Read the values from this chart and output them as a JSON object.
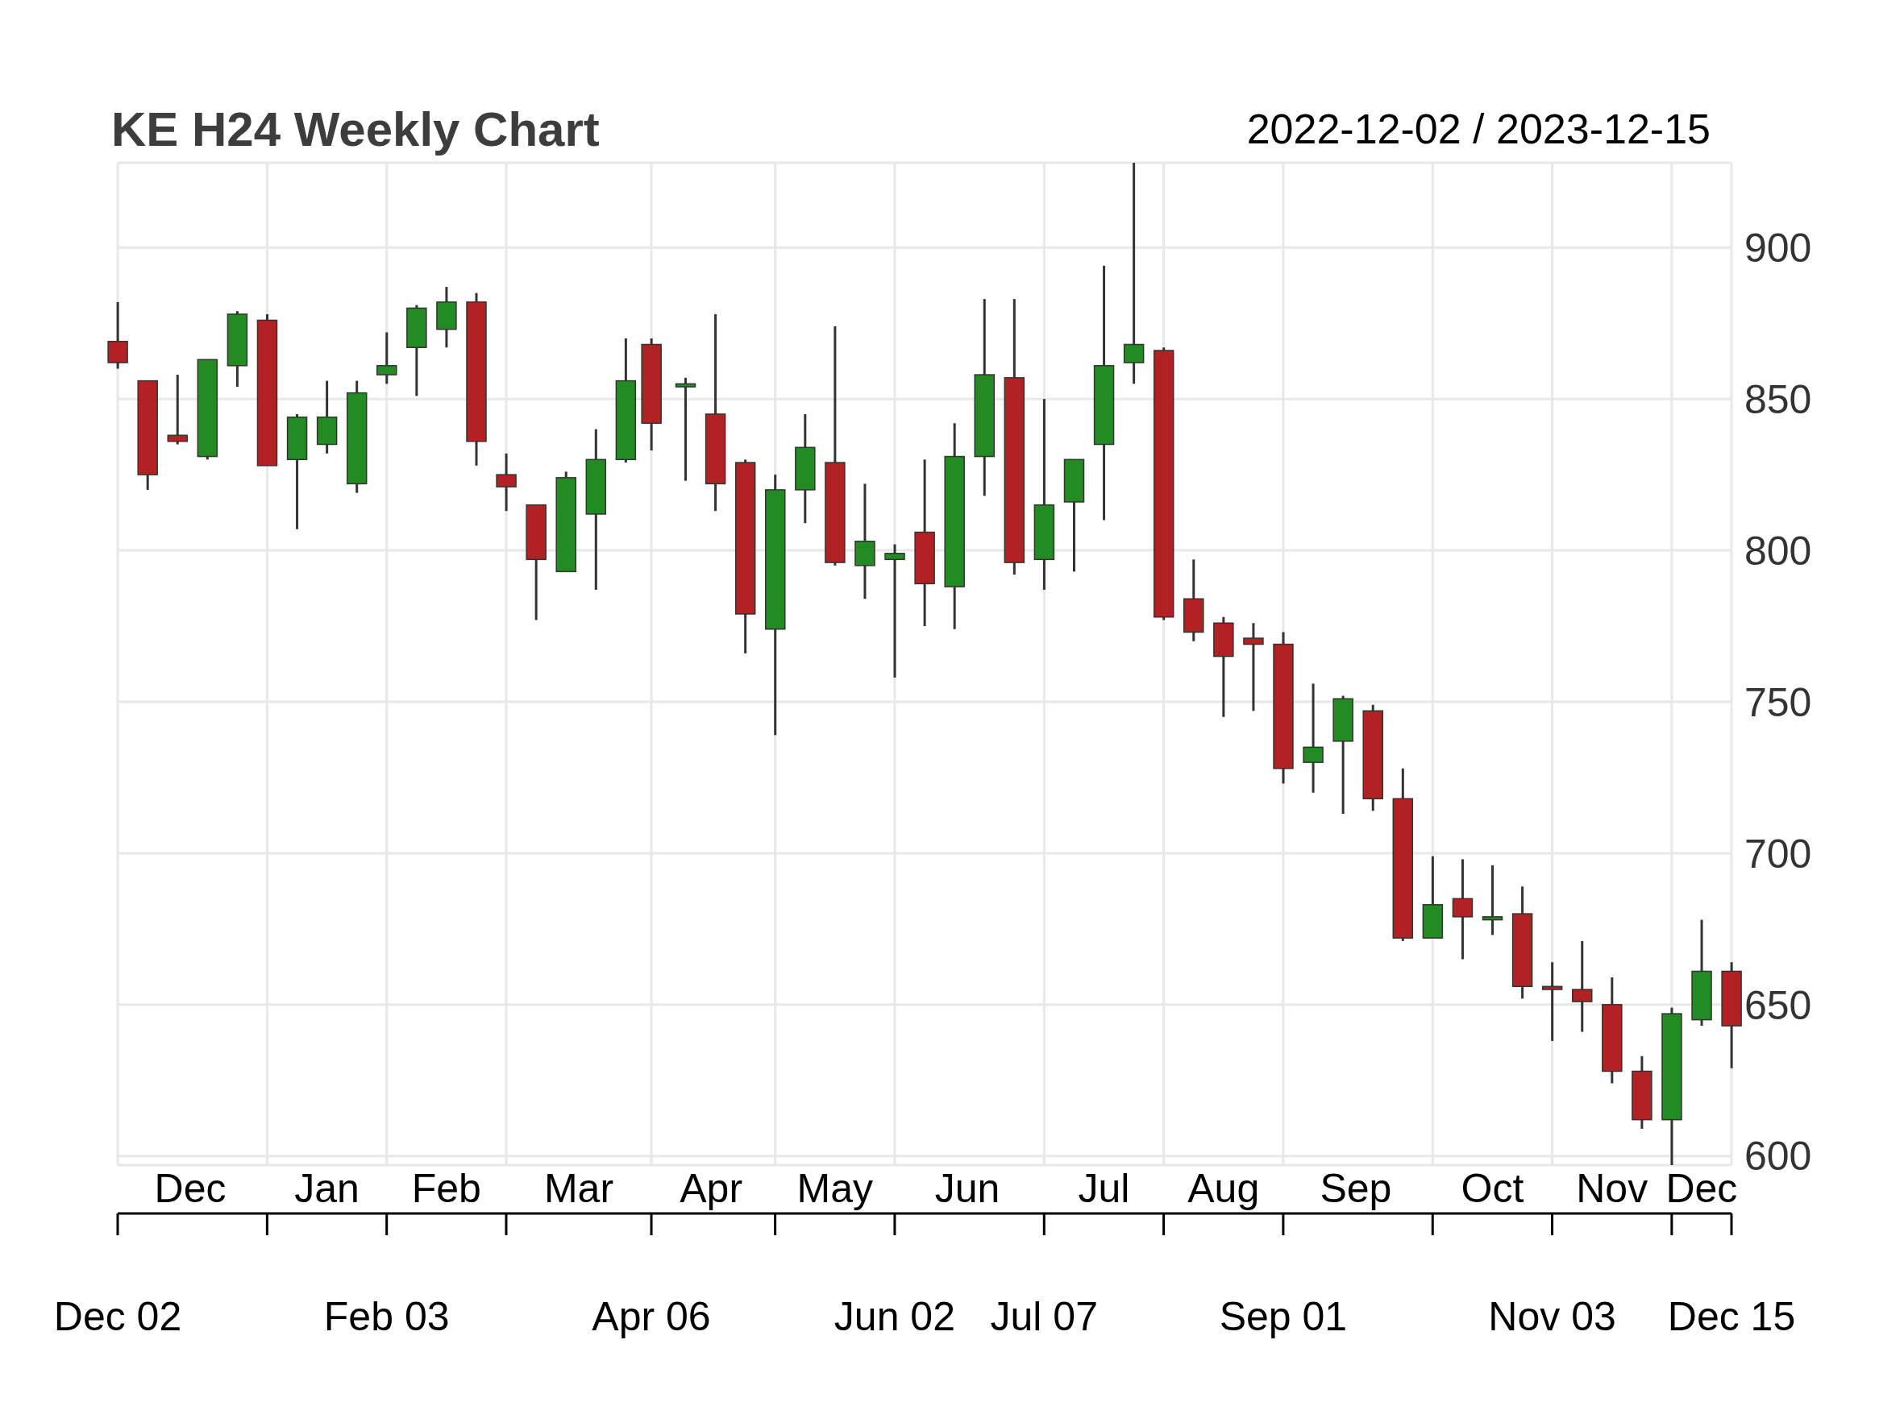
{
  "chart_data": {
    "type": "candlestick",
    "title": "KE H24 Weekly Chart",
    "subtitle": "2022-12-02 / 2023-12-15",
    "x": [
      "2022-12-02",
      "2022-12-09",
      "2022-12-16",
      "2022-12-23",
      "2022-12-30",
      "2023-01-06",
      "2023-01-13",
      "2023-01-20",
      "2023-01-27",
      "2023-02-03",
      "2023-02-10",
      "2023-02-17",
      "2023-02-24",
      "2023-03-03",
      "2023-03-10",
      "2023-03-17",
      "2023-03-24",
      "2023-03-31",
      "2023-04-06",
      "2023-04-14",
      "2023-04-21",
      "2023-04-28",
      "2023-05-05",
      "2023-05-12",
      "2023-05-19",
      "2023-05-26",
      "2023-06-02",
      "2023-06-09",
      "2023-06-16",
      "2023-06-23",
      "2023-06-30",
      "2023-07-07",
      "2023-07-14",
      "2023-07-21",
      "2023-07-28",
      "2023-08-04",
      "2023-08-11",
      "2023-08-18",
      "2023-08-25",
      "2023-09-01",
      "2023-09-08",
      "2023-09-15",
      "2023-09-22",
      "2023-09-29",
      "2023-10-06",
      "2023-10-13",
      "2023-10-20",
      "2023-10-27",
      "2023-11-03",
      "2023-11-10",
      "2023-11-17",
      "2023-11-24",
      "2023-12-01",
      "2023-12-08",
      "2023-12-15"
    ],
    "ohlc": [
      [
        869,
        882,
        860,
        862
      ],
      [
        856,
        856,
        820,
        825
      ],
      [
        838,
        858,
        835,
        836
      ],
      [
        831,
        863,
        830,
        863
      ],
      [
        861,
        879,
        854,
        878
      ],
      [
        876,
        878,
        828,
        828
      ],
      [
        830,
        845,
        807,
        844
      ],
      [
        835,
        856,
        832,
        844
      ],
      [
        822,
        856,
        819,
        852
      ],
      [
        858,
        872,
        855,
        861
      ],
      [
        867,
        881,
        851,
        880
      ],
      [
        873,
        887,
        867,
        882
      ],
      [
        882,
        885,
        828,
        836
      ],
      [
        825,
        832,
        813,
        821
      ],
      [
        815,
        815,
        777,
        797
      ],
      [
        793,
        826,
        793,
        824
      ],
      [
        812,
        840,
        787,
        830
      ],
      [
        830,
        870,
        829,
        856
      ],
      [
        868,
        870,
        833,
        842
      ],
      [
        854,
        857,
        823,
        855
      ],
      [
        845,
        878,
        813,
        822
      ],
      [
        829,
        830,
        766,
        779
      ],
      [
        774,
        825,
        739,
        820
      ],
      [
        820,
        845,
        809,
        834
      ],
      [
        829,
        874,
        795,
        796
      ],
      [
        795,
        822,
        784,
        803
      ],
      [
        797,
        802,
        758,
        799
      ],
      [
        806,
        830,
        775,
        789
      ],
      [
        788,
        842,
        774,
        831
      ],
      [
        831,
        883,
        818,
        858
      ],
      [
        857,
        883,
        792,
        796
      ],
      [
        797,
        850,
        787,
        815
      ],
      [
        816,
        830,
        793,
        830
      ],
      [
        835,
        894,
        810,
        861
      ],
      [
        862,
        928,
        855,
        868
      ],
      [
        866,
        867,
        777,
        778
      ],
      [
        784,
        797,
        770,
        773
      ],
      [
        776,
        778,
        745,
        765
      ],
      [
        771,
        776,
        747,
        769
      ],
      [
        769,
        773,
        723,
        728
      ],
      [
        730,
        756,
        720,
        735
      ],
      [
        737,
        752,
        713,
        751
      ],
      [
        747,
        749,
        714,
        718
      ],
      [
        718,
        728,
        671,
        672
      ],
      [
        672,
        699,
        672,
        683
      ],
      [
        685,
        698,
        665,
        679
      ],
      [
        678,
        696,
        673,
        679
      ],
      [
        680,
        689,
        652,
        656
      ],
      [
        656,
        664,
        638,
        655
      ],
      [
        655,
        671,
        641,
        651
      ],
      [
        650,
        659,
        624,
        628
      ],
      [
        628,
        633,
        609,
        612
      ],
      [
        612,
        649,
        597,
        647
      ],
      [
        645,
        678,
        643,
        661
      ],
      [
        661,
        664,
        629,
        643
      ]
    ],
    "colors": [
      "#b22222",
      "#b22222",
      "#b22222",
      "#228b22",
      "#228b22",
      "#b22222",
      "#228b22",
      "#228b22",
      "#228b22",
      "#228b22",
      "#228b22",
      "#228b22",
      "#b22222",
      "#b22222",
      "#b22222",
      "#228b22",
      "#228b22",
      "#228b22",
      "#b22222",
      "#228b22",
      "#b22222",
      "#b22222",
      "#228b22",
      "#228b22",
      "#b22222",
      "#228b22",
      "#228b22",
      "#b22222",
      "#228b22",
      "#228b22",
      "#b22222",
      "#228b22",
      "#228b22",
      "#228b22",
      "#228b22",
      "#b22222",
      "#b22222",
      "#b22222",
      "#b22222",
      "#b22222",
      "#228b22",
      "#228b22",
      "#b22222",
      "#b22222",
      "#228b22",
      "#b22222",
      "#228b22",
      "#b22222",
      "#b22222",
      "#b22222",
      "#b22222",
      "#b22222",
      "#228b22",
      "#228b22",
      "#b22222"
    ],
    "xlim": [
      "2022-12-02",
      "2023-12-15"
    ],
    "xticks": [
      {
        "value": "2022-12-02",
        "label": "Dec 02"
      },
      {
        "value": "2023-01-06",
        "label": null
      },
      {
        "value": "2023-02-03",
        "label": "Feb 03"
      },
      {
        "value": "2023-03-03",
        "label": null
      },
      {
        "value": "2023-04-06",
        "label": "Apr 06"
      },
      {
        "value": "2023-05-05",
        "label": null
      },
      {
        "value": "2023-06-02",
        "label": "Jun 02"
      },
      {
        "value": "2023-07-07",
        "label": "Jul 07"
      },
      {
        "value": "2023-08-04",
        "label": null
      },
      {
        "value": "2023-09-01",
        "label": "Sep 01"
      },
      {
        "value": "2023-10-06",
        "label": null
      },
      {
        "value": "2023-11-03",
        "label": "Nov 03"
      },
      {
        "value": "2023-12-01",
        "label": null
      },
      {
        "value": "2023-12-15",
        "label": "Dec 15"
      }
    ],
    "x2lim": [
      "2022-12-02",
      "2023-12-15"
    ],
    "x2ticks": [
      {
        "value": "2022-12-19",
        "label": "Dec"
      },
      {
        "value": "2023-01-20",
        "label": "Jan"
      },
      {
        "value": "2023-02-17",
        "label": "Feb"
      },
      {
        "value": "2023-03-20",
        "label": "Mar"
      },
      {
        "value": "2023-04-20",
        "label": "Apr"
      },
      {
        "value": "2023-05-19",
        "label": "May"
      },
      {
        "value": "2023-06-19",
        "label": "Jun"
      },
      {
        "value": "2023-07-21",
        "label": "Jul"
      },
      {
        "value": "2023-08-18",
        "label": "Aug"
      },
      {
        "value": "2023-09-18",
        "label": "Sep"
      },
      {
        "value": "2023-10-20",
        "label": "Oct"
      },
      {
        "value": "2023-11-17",
        "label": "Nov"
      },
      {
        "value": "2023-12-08",
        "label": "Dec"
      }
    ],
    "ylim": [
      597,
      928
    ],
    "yticks": [
      600,
      650,
      700,
      750,
      800,
      850,
      900
    ],
    "grid": true
  }
}
